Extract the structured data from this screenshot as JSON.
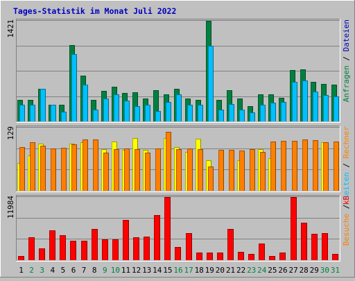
{
  "chart_data": {
    "type": "bar",
    "title": "Tages-Statistik im Monat Juli 2022",
    "categories": [
      "1",
      "2",
      "3",
      "4",
      "5",
      "6",
      "7",
      "8",
      "9",
      "10",
      "11",
      "12",
      "13",
      "14",
      "15",
      "16",
      "17",
      "18",
      "19",
      "20",
      "21",
      "22",
      "23",
      "24",
      "25",
      "26",
      "27",
      "28",
      "29",
      "30",
      "31"
    ],
    "weekend_days": [
      "2",
      "3",
      "9",
      "10",
      "16",
      "17",
      "23",
      "24",
      "30",
      "31"
    ],
    "panels": [
      {
        "id": "top",
        "max_label": "1421",
        "ylim": [
          0,
          1421
        ],
        "series": [
          {
            "name": "Anfragen",
            "color": "#008040",
            "values": [
              300,
              300,
              457,
              239,
              239,
              1075,
              642,
              307,
              430,
              491,
              403,
              411,
              328,
              442,
              379,
              464,
              321,
              307,
              1421,
              300,
              437,
              328,
              212,
              382,
              382,
              335,
              724,
              732,
              556,
              525,
              518
            ]
          },
          {
            "name": "Dateien",
            "color": "#00c0ff",
            "values": [
              239,
              239,
              457,
              239,
              136,
              948,
              519,
              164,
              321,
              382,
              292,
              212,
              239,
              150,
              276,
              382,
              232,
              232,
              1067,
              164,
              246,
              164,
              126,
              239,
              264,
              276,
              555,
              581,
              418,
              371,
              357
            ]
          }
        ],
        "right_labels": [
          {
            "text": "Anfragen",
            "color": "#008040"
          },
          {
            "text": "Dateien",
            "color": "#0000c0"
          }
        ]
      },
      {
        "id": "middle",
        "max_label": "129",
        "ylim": [
          0,
          129
        ],
        "series": [
          {
            "name": "Seiten",
            "color": "#ffff00",
            "values": [
              56,
              73,
              97,
              0,
              0,
              96,
              99,
              0,
              85,
              101,
              83,
              108,
              84,
              0,
              108,
              89,
              79,
              106,
              63,
              0,
              0,
              62,
              0,
              85,
              67,
              0,
              0,
              0,
              0,
              99,
              0
            ]
          },
          {
            "name": "Besuche",
            "color": "#ff8000",
            "values": [
              90,
              99,
              92,
              87,
              88,
              95,
              105,
              105,
              78,
              85,
              86,
              85,
              78,
              87,
              121,
              85,
              86,
              85,
              50,
              83,
              84,
              82,
              85,
              80,
              100,
              102,
              102,
              105,
              104,
              99,
              100
            ]
          }
        ],
        "right_labels": [
          {
            "text": "Besuche",
            "color": "#ff8000"
          },
          {
            "text": "Seiten",
            "color": "#00c0ff"
          },
          {
            "text": "Rechner",
            "color": "#ff8000"
          }
        ]
      },
      {
        "id": "bottom",
        "max_label": "11984",
        "ylim": [
          0,
          11984
        ],
        "series": [
          {
            "name": "kB",
            "color": "#ff0000",
            "values": [
              800,
              4300,
              2200,
              5600,
              4800,
              3700,
              3700,
              5900,
              3900,
              4000,
              7700,
              4300,
              4500,
              8500,
              11984,
              2500,
              5100,
              1500,
              1500,
              1500,
              5900,
              1600,
              1200,
              3200,
              800,
              1500,
              11984,
              7100,
              5000,
              5100,
              1200
            ]
          }
        ],
        "right_labels": [
          {
            "text": "kB",
            "color": "#ff0000"
          }
        ]
      }
    ]
  }
}
